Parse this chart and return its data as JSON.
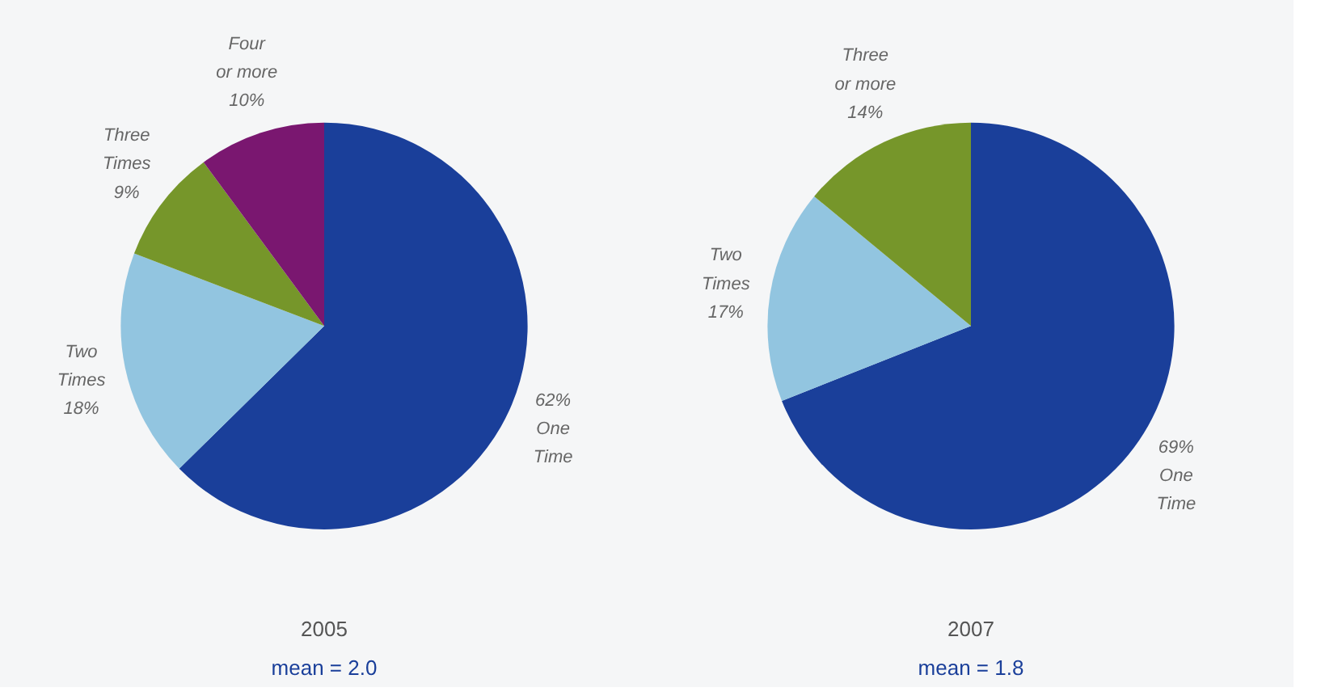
{
  "chart_data": [
    {
      "type": "pie",
      "title": "2005",
      "subtitle": "mean = 2.0",
      "categories": [
        "One Time",
        "Two Times",
        "Three Times",
        "Four or more"
      ],
      "values": [
        62,
        18,
        9,
        10
      ],
      "colors": [
        "#1a3f9a",
        "#92c5e0",
        "#76962a",
        "#7a1770"
      ],
      "value_labels": [
        "62%",
        "18%",
        "9%",
        "10%"
      ],
      "legend": false
    },
    {
      "type": "pie",
      "title": "2007",
      "subtitle": "mean = 1.8",
      "categories": [
        "One Time",
        "Two Times",
        "Three or more"
      ],
      "values": [
        69,
        17,
        14
      ],
      "colors": [
        "#1a3f9a",
        "#92c5e0",
        "#76962a"
      ],
      "value_labels": [
        "69%",
        "17%",
        "14%"
      ],
      "legend": false
    }
  ]
}
